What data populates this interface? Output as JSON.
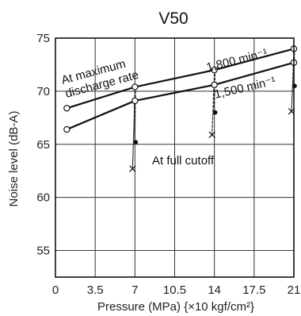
{
  "chart_data": {
    "type": "line",
    "title": "V50",
    "xlabel": "Pressure (MPa) {×10 kgf/cm²}",
    "ylabel": "Noise level (dB-A)",
    "xlim": [
      0,
      21
    ],
    "ylim": [
      52.5,
      75
    ],
    "xticks": [
      "0",
      "3.5",
      "7",
      "10.5",
      "14",
      "17.5",
      "21"
    ],
    "yticks": [
      "55",
      "60",
      "65",
      "70",
      "75"
    ],
    "grid": true,
    "series": [
      {
        "name": "1,800 min⁻¹",
        "marker": "open-circle",
        "x": [
          1,
          7,
          14,
          21
        ],
        "y": [
          68.4,
          70.4,
          72.0,
          74.0
        ]
      },
      {
        "name": "1,500 min⁻¹",
        "marker": "open-circle",
        "x": [
          1,
          7,
          14,
          21
        ],
        "y": [
          66.4,
          69.1,
          70.6,
          72.7
        ]
      },
      {
        "name": "",
        "marker": "filled-dot",
        "x": [
          7,
          14,
          21
        ],
        "y": [
          65.2,
          68.0,
          70.5
        ]
      },
      {
        "name": "",
        "marker": "cross",
        "x": [
          7,
          14,
          21
        ],
        "y": [
          62.7,
          65.9,
          68.1
        ]
      }
    ],
    "annotations": {
      "max_discharge_line1": "At maximum",
      "max_discharge_line2": "discharge rate",
      "full_cutoff": "At full cutoff"
    }
  }
}
